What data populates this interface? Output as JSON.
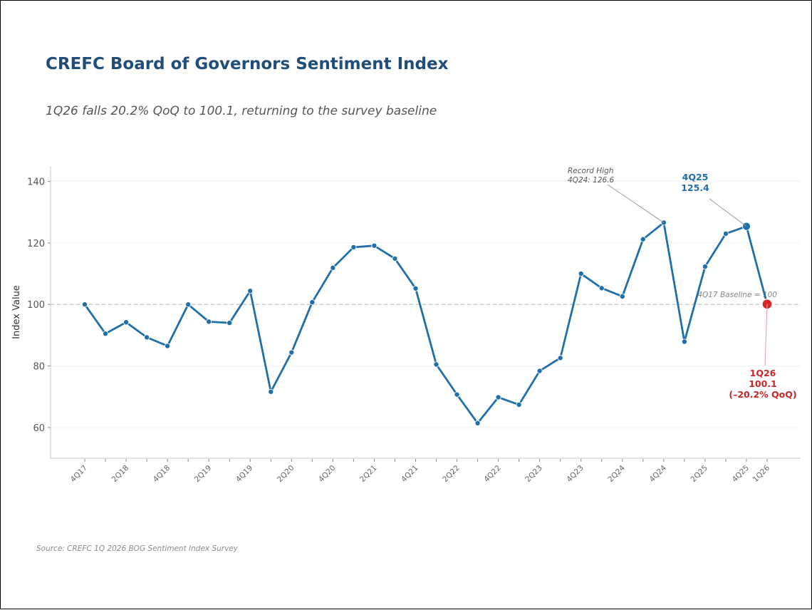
{
  "chart_data": {
    "type": "line",
    "title": "CREFC Board of Governors Sentiment Index",
    "subtitle": "1Q26 falls 20.2% QoQ to 100.1, returning to the survey baseline",
    "xlabel": "",
    "ylabel": "Index Value",
    "ylim": [
      50,
      145
    ],
    "yticks": [
      60,
      80,
      100,
      120,
      140
    ],
    "grid": true,
    "legend": "none",
    "categories": [
      "4Q17",
      "1Q18",
      "2Q18",
      "3Q18",
      "4Q18",
      "1Q19",
      "2Q19",
      "3Q19",
      "4Q19",
      "1Q20",
      "2Q20",
      "3Q20",
      "4Q20",
      "1Q21",
      "2Q21",
      "3Q21",
      "4Q21",
      "1Q22",
      "2Q22",
      "3Q22",
      "4Q22",
      "1Q23",
      "2Q23",
      "3Q23",
      "4Q23",
      "1Q24",
      "2Q24",
      "3Q24",
      "4Q24",
      "1Q25",
      "2Q25",
      "3Q25",
      "4Q25",
      "1Q26"
    ],
    "xtick_labels": [
      "4Q17",
      "2Q18",
      "4Q18",
      "2Q19",
      "4Q19",
      "2Q20",
      "4Q20",
      "2Q21",
      "4Q21",
      "2Q22",
      "4Q22",
      "2Q23",
      "4Q23",
      "2Q24",
      "4Q24",
      "2Q25",
      "4Q25",
      "1Q26"
    ],
    "series": [
      {
        "name": "Sentiment Index",
        "color": "#1f6fa8",
        "values": [
          100.0,
          90.5,
          94.2,
          89.3,
          86.5,
          100.0,
          94.4,
          94.0,
          104.4,
          71.6,
          84.4,
          100.7,
          111.9,
          118.6,
          119.1,
          114.9,
          105.2,
          80.5,
          70.7,
          61.4,
          69.8,
          67.4,
          78.4,
          82.6,
          110.0,
          105.3,
          102.6,
          121.2,
          126.6,
          87.9,
          112.3,
          123.0,
          125.4,
          100.1
        ]
      }
    ],
    "reference_line": {
      "value": 100,
      "label": "4Q17 Baseline = 100",
      "color": "#c8c8c8"
    },
    "annotations": [
      {
        "category": "4Q24",
        "lines": [
          "Record High",
          "4Q24: 126.6"
        ],
        "style": "italic",
        "color": "#555555"
      },
      {
        "category": "4Q25",
        "lines": [
          "4Q25",
          "125.4"
        ],
        "style": "bold",
        "color": "#1f6fa8"
      },
      {
        "category": "1Q26",
        "lines": [
          "1Q26",
          "100.1",
          "(–20.2% QoQ)"
        ],
        "style": "bold",
        "color": "#c62828"
      }
    ],
    "source": "Source: CREFC 1Q 2026 BOG Sentiment Index Survey"
  },
  "colors": {
    "title": "#1f4e79",
    "line": "#1f6fa8",
    "highlight_last": "#d62728",
    "annotation_red": "#c62828"
  }
}
